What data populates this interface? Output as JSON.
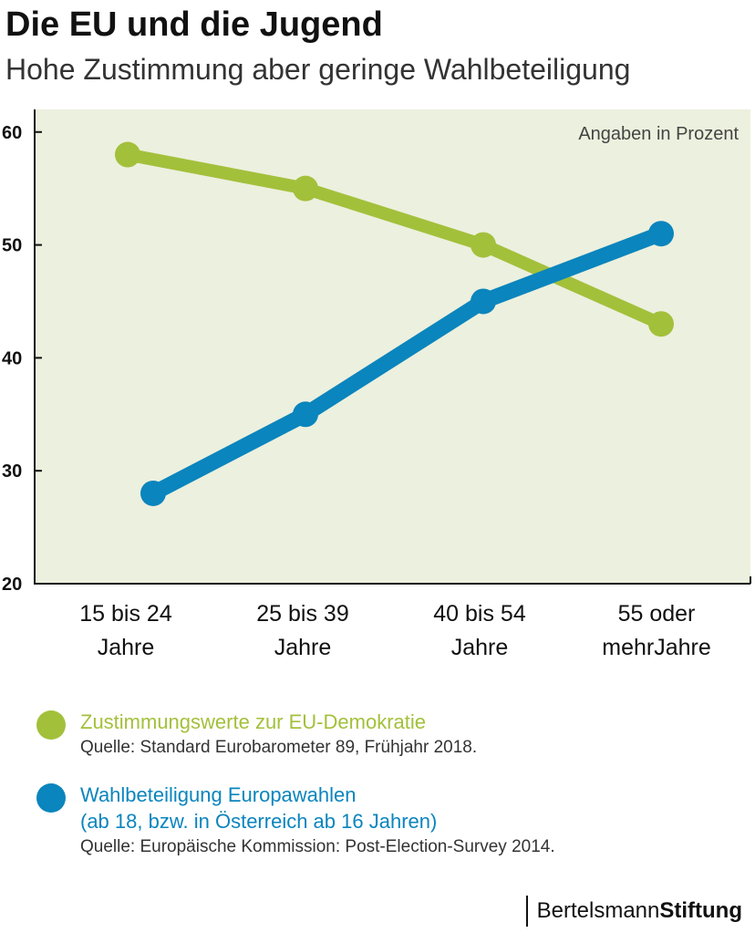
{
  "header": {
    "title": "Die EU und die Jugend",
    "subtitle": "Hohe Zustimmung aber geringe Wahlbeteiligung"
  },
  "chart_data": {
    "type": "line",
    "title": "Die EU und die Jugend",
    "subtitle": "Hohe Zustimmung aber geringe Wahlbeteiligung",
    "unit_note": "Angaben in Prozent",
    "categories": [
      [
        "15 bis 24",
        "Jahre"
      ],
      [
        "25 bis 39",
        "Jahre"
      ],
      [
        "40 bis 54",
        "Jahre"
      ],
      [
        "55 oder",
        "mehrJahre"
      ]
    ],
    "ylim": [
      20,
      62
    ],
    "yticks": [
      20,
      30,
      40,
      50,
      60
    ],
    "series": [
      {
        "name": "Zustimmungswerte zur EU-Demokratie",
        "color": "#a3c03b",
        "values": [
          58,
          55,
          50,
          43
        ]
      },
      {
        "name": "Wahlbeteiligung Europawahlen",
        "color": "#0a85bd",
        "values": [
          28,
          35,
          45,
          51
        ]
      }
    ],
    "background": "#ecf0de"
  },
  "legend": {
    "items": [
      {
        "color": "#a3c03b",
        "lines": [
          "Zustimmungswerte zur EU-Demokratie"
        ],
        "source": "Quelle: Standard Eurobarometer 89, Frühjahr 2018."
      },
      {
        "color": "#0a85bd",
        "lines": [
          "Wahlbeteiligung Europawahlen",
          "(ab 18, bzw. in Österreich ab 16 Jahren)"
        ],
        "source": "Quelle: Europäische Kommission: Post-Election-Survey 2014."
      }
    ]
  },
  "logo": {
    "part1": "Bertelsmann",
    "part2": "Stiftung"
  }
}
